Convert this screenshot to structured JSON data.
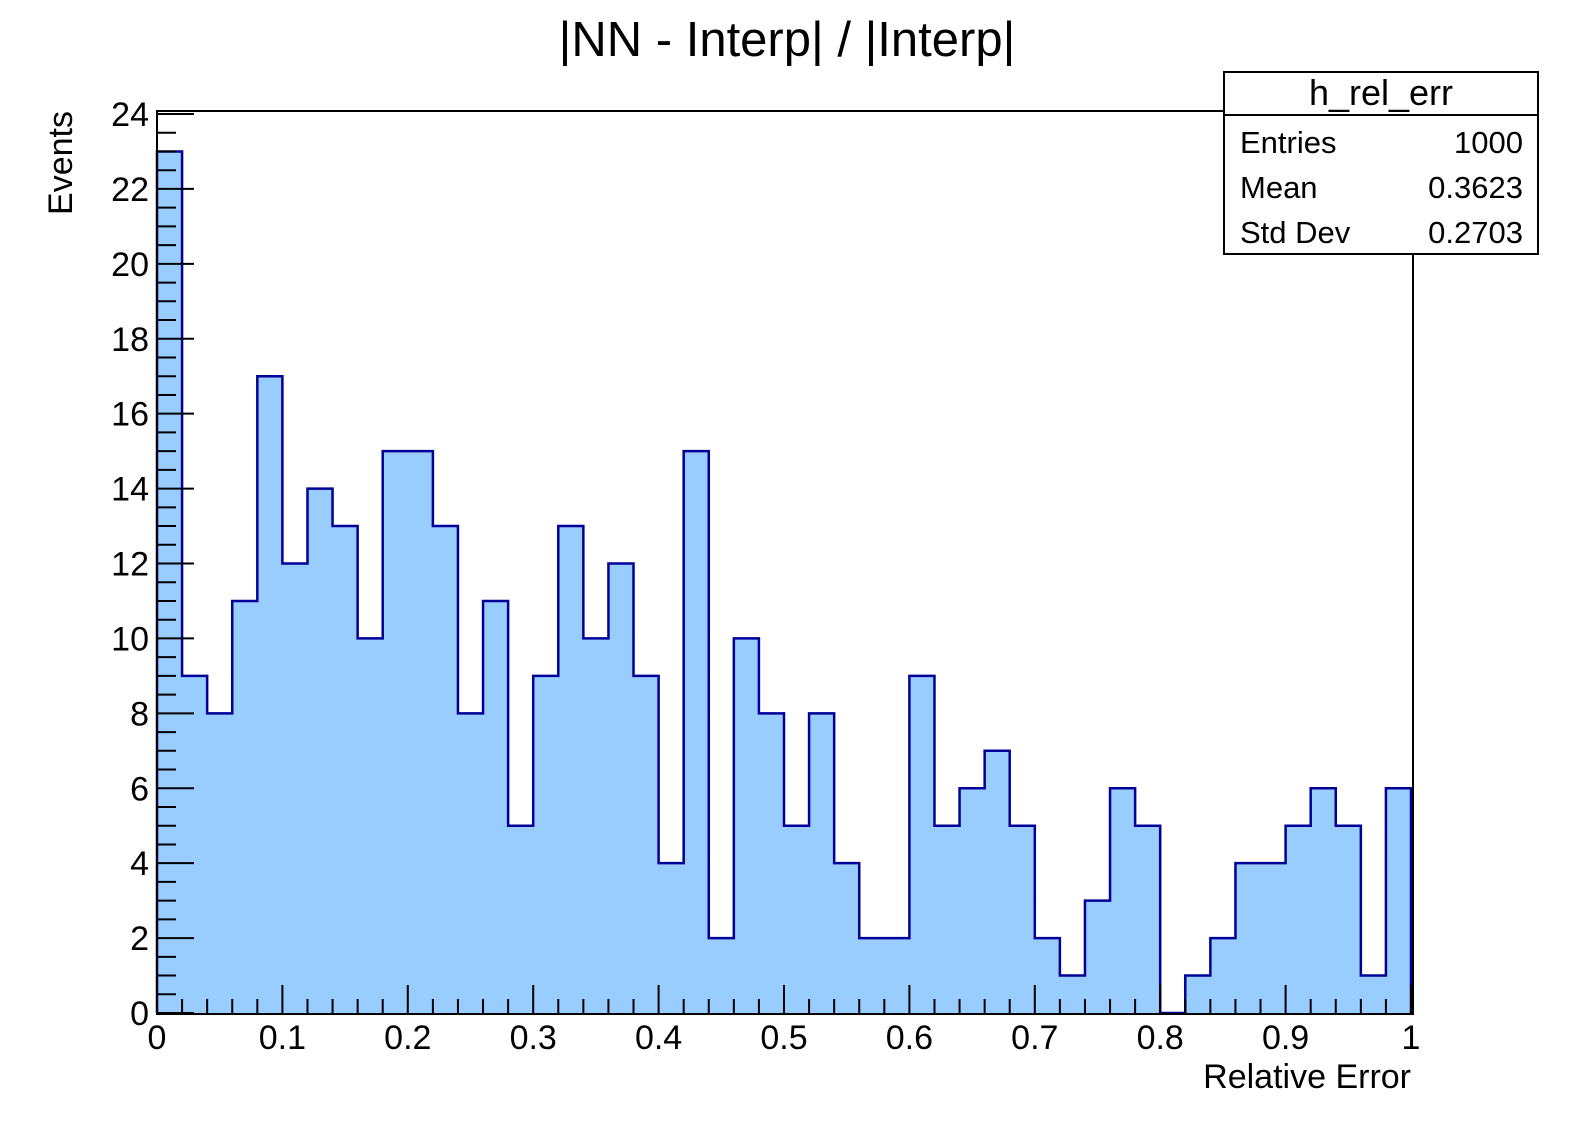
{
  "chart_data": {
    "type": "bar",
    "title": "|NN - Interp| / |Interp|",
    "xlabel": "Relative Error",
    "ylabel": "Events",
    "xlim": [
      0,
      1
    ],
    "ylim": [
      0,
      24
    ],
    "bin_width": 0.02,
    "x_ticks": [
      "0",
      "0.1",
      "0.2",
      "0.3",
      "0.4",
      "0.5",
      "0.6",
      "0.7",
      "0.8",
      "0.9",
      "1"
    ],
    "y_ticks": [
      "0",
      "2",
      "4",
      "6",
      "8",
      "10",
      "12",
      "14",
      "16",
      "18",
      "20",
      "22",
      "24"
    ],
    "values": [
      23,
      9,
      8,
      11,
      17,
      12,
      14,
      13,
      10,
      15,
      15,
      13,
      8,
      11,
      5,
      9,
      13,
      10,
      12,
      9,
      4,
      15,
      2,
      10,
      8,
      5,
      8,
      4,
      2,
      2,
      9,
      5,
      6,
      7,
      5,
      2,
      1,
      3,
      6,
      5,
      0,
      1,
      2,
      4,
      4,
      5,
      6,
      5,
      1,
      6
    ],
    "fill_color": "#99ccff",
    "line_color": "#000099",
    "grid": false
  },
  "stats_box": {
    "name": "h_rel_err",
    "rows": [
      {
        "label": "Entries",
        "value": "1000"
      },
      {
        "label": "Mean",
        "value": "0.3623"
      },
      {
        "label": "Std Dev",
        "value": "0.2703"
      }
    ]
  }
}
